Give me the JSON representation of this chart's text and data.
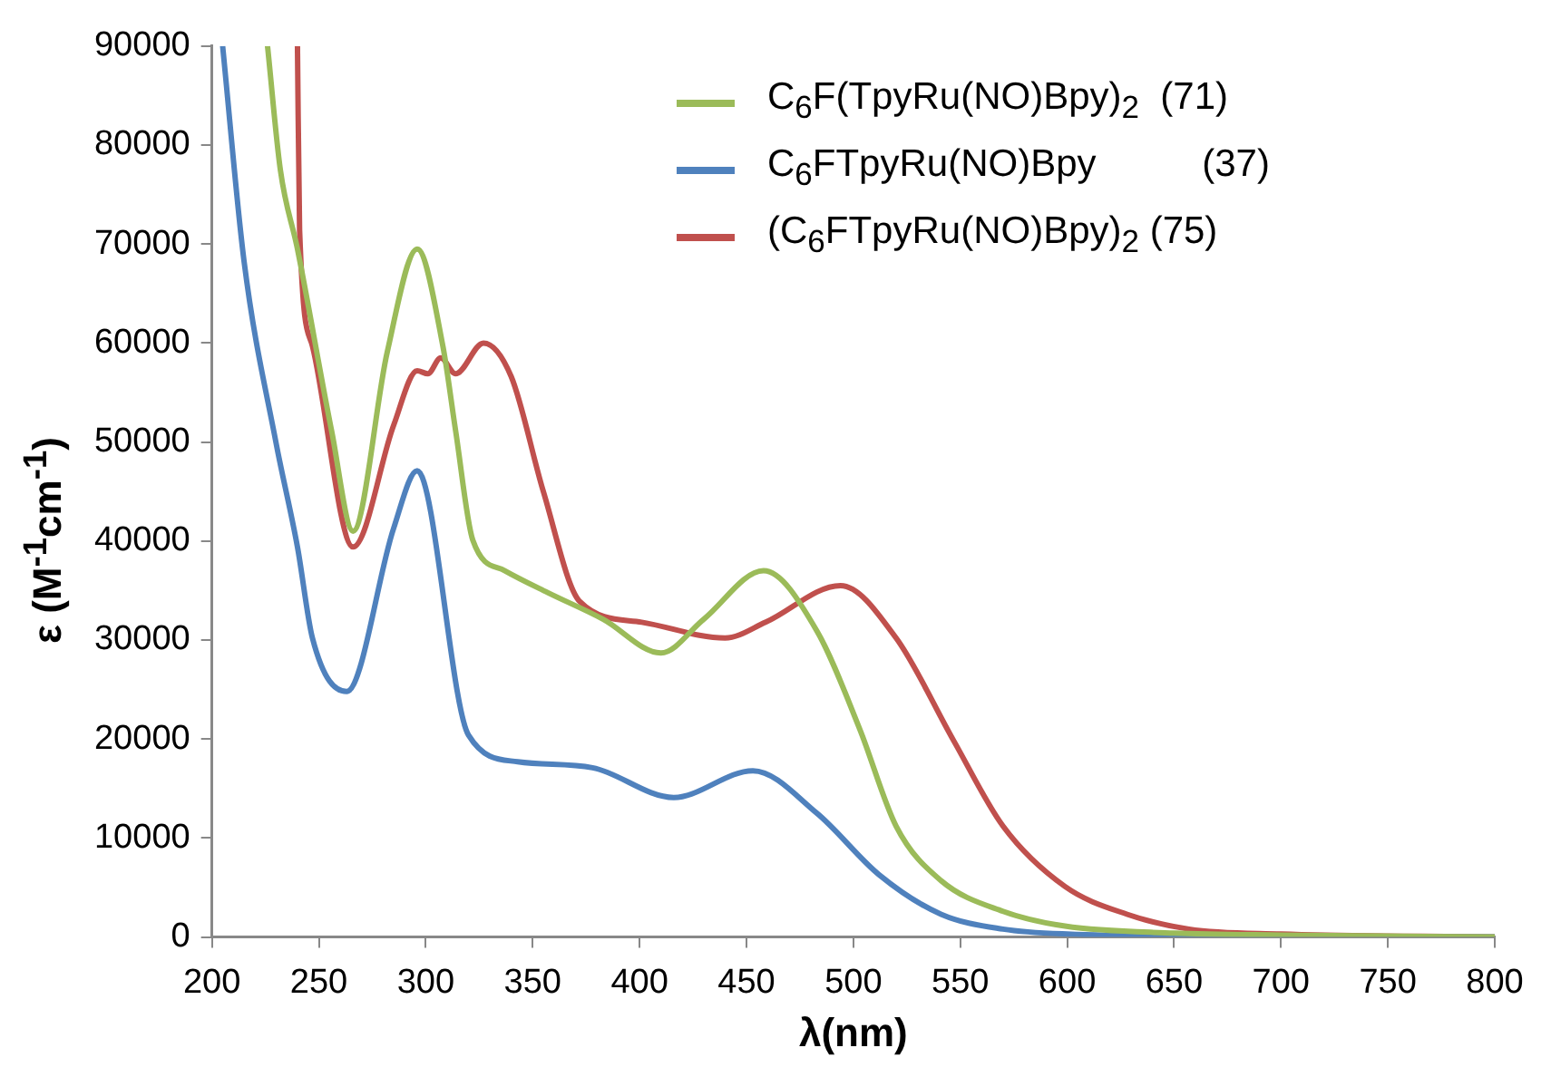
{
  "chart_data": {
    "type": "line",
    "xlabel": "λ(nm)",
    "ylabel": "ε (M$^{-1}$cm$^{-1}$)",
    "xlim": [
      200,
      800
    ],
    "xticks": [
      200,
      250,
      300,
      350,
      400,
      450,
      500,
      550,
      600,
      650,
      700,
      750,
      800
    ],
    "ylim": [
      0,
      90000
    ],
    "yticks": [
      0,
      10000,
      20000,
      30000,
      40000,
      50000,
      60000,
      70000,
      80000,
      90000
    ],
    "legend": "top right",
    "marker": "none",
    "line_style": "solid",
    "series": [
      {
        "name": "C$_{6}$F(TpyRu(NO)Bpy)$_{2}$  (71)",
        "color": "#9bbb59",
        "x": [
          226,
          232,
          240,
          256,
          266,
          282,
          296,
          308,
          314,
          322,
          337,
          357,
          383,
          410,
          430,
          458,
          483,
          503,
          520,
          541,
          570,
          599,
          650,
          700,
          800
        ],
        "values": [
          90000,
          77500,
          69500,
          51100,
          41000,
          59100,
          69500,
          59700,
          51100,
          40100,
          37000,
          34800,
          32100,
          28700,
          32100,
          37000,
          30900,
          21000,
          11200,
          5700,
          2600,
          1100,
          400,
          200,
          0
        ]
      },
      {
        "name": "C$_{6}$FTpyRu(NO)Bpy          (37)",
        "color": "#4f81bd",
        "x": [
          205,
          215,
          230,
          240,
          247,
          263,
          285,
          296,
          320,
          343,
          378,
          416,
          453,
          483,
          512,
          541,
          570,
          600,
          700,
          800
        ],
        "values": [
          90000,
          68300,
          49900,
          39400,
          30200,
          24800,
          41300,
          47100,
          20400,
          17700,
          17100,
          14100,
          16800,
          12500,
          6300,
          2300,
          800,
          300,
          0,
          0
        ]
      },
      {
        "name": "(C$_{6}$FTpyRu(NO)Bpy)$_{2}$ (75)",
        "color": "#c0504d",
        "x": [
          240,
          241,
          247,
          266,
          285,
          296,
          301,
          307,
          314,
          327,
          340,
          355,
          372,
          401,
          440,
          459,
          494,
          520,
          547,
          570,
          599,
          628,
          657,
          700,
          800
        ],
        "values": [
          90000,
          71400,
          59700,
          39400,
          51700,
          57200,
          56900,
          58500,
          56900,
          60000,
          56600,
          45000,
          33900,
          31800,
          30200,
          31800,
          35500,
          30200,
          19800,
          11200,
          5100,
          2300,
          800,
          300,
          0
        ]
      }
    ]
  }
}
